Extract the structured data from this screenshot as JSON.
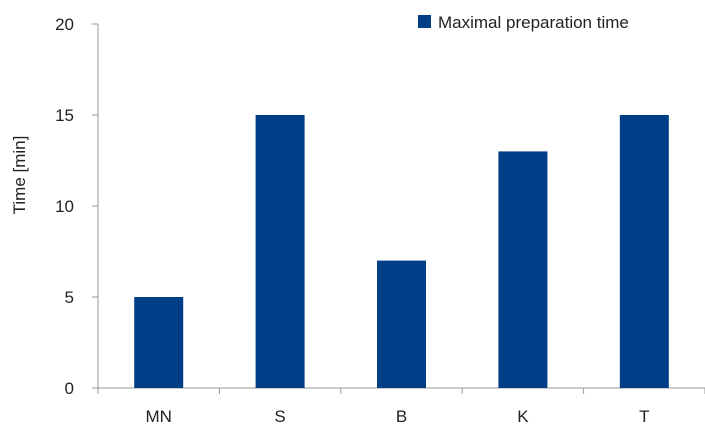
{
  "chart_data": {
    "type": "bar",
    "categories": [
      "MN",
      "S",
      "B",
      "K",
      "T"
    ],
    "series": [
      {
        "name": "Maximal preparation time",
        "values": [
          5,
          15,
          7,
          13,
          15
        ],
        "color": "#003f87"
      }
    ],
    "title": "",
    "xlabel": "",
    "ylabel": "Time [min]",
    "ylim": [
      0,
      20
    ],
    "yticks": [
      0,
      5,
      10,
      15,
      20
    ],
    "grid": false,
    "legend_position": "top-right"
  }
}
